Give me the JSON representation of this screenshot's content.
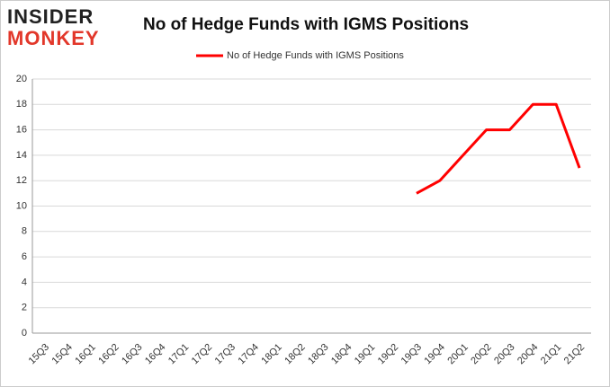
{
  "logo": {
    "line1": "INSIDER",
    "line2": "MONKEY"
  },
  "chart_data": {
    "type": "line",
    "title": "No of Hedge Funds with IGMS Positions",
    "categories": [
      "15Q3",
      "15Q4",
      "16Q1",
      "16Q2",
      "16Q3",
      "16Q4",
      "17Q1",
      "17Q2",
      "17Q3",
      "17Q4",
      "18Q1",
      "18Q2",
      "18Q3",
      "18Q4",
      "19Q1",
      "19Q2",
      "19Q3",
      "19Q4",
      "20Q1",
      "20Q2",
      "20Q3",
      "20Q4",
      "21Q1",
      "21Q2"
    ],
    "series": [
      {
        "name": "No of Hedge Funds with IGMS Positions",
        "color": "#ff0000",
        "values": [
          null,
          null,
          null,
          null,
          null,
          null,
          null,
          null,
          null,
          null,
          null,
          null,
          null,
          null,
          null,
          null,
          11,
          12,
          14,
          16,
          16,
          18,
          18,
          13
        ]
      }
    ],
    "ylim": [
      0,
      20
    ],
    "yticks": [
      0,
      2,
      4,
      6,
      8,
      10,
      12,
      14,
      16,
      18,
      20
    ],
    "grid": true,
    "legend": "top"
  }
}
